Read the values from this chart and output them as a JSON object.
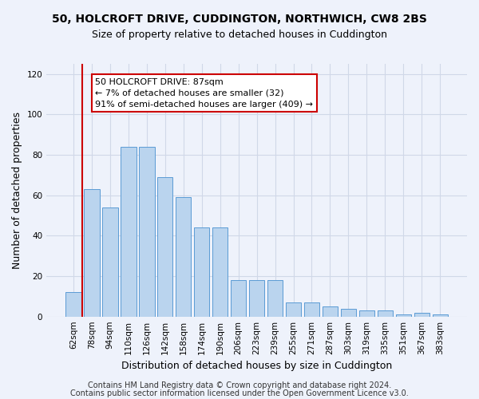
{
  "title": "50, HOLCROFT DRIVE, CUDDINGTON, NORTHWICH, CW8 2BS",
  "subtitle": "Size of property relative to detached houses in Cuddington",
  "xlabel": "Distribution of detached houses by size in Cuddington",
  "ylabel": "Number of detached properties",
  "categories": [
    "62sqm",
    "78sqm",
    "94sqm",
    "110sqm",
    "126sqm",
    "142sqm",
    "158sqm",
    "174sqm",
    "190sqm",
    "206sqm",
    "223sqm",
    "239sqm",
    "255sqm",
    "271sqm",
    "287sqm",
    "303sqm",
    "319sqm",
    "335sqm",
    "351sqm",
    "367sqm",
    "383sqm"
  ],
  "values": [
    12,
    63,
    54,
    84,
    84,
    69,
    59,
    44,
    44,
    18,
    18,
    18,
    7,
    7,
    5,
    4,
    3,
    3,
    1,
    2,
    1
  ],
  "bar_color": "#bad4ee",
  "bar_edge_color": "#5b9bd5",
  "grid_color": "#d0d8e8",
  "background_color": "#eef2fb",
  "vline_x": 1.0,
  "vline_color": "#cc0000",
  "annotation_text": "50 HOLCROFT DRIVE: 87sqm\n← 7% of detached houses are smaller (32)\n91% of semi-detached houses are larger (409) →",
  "annotation_box_color": "#ffffff",
  "annotation_box_edge": "#cc0000",
  "ylim": [
    0,
    125
  ],
  "yticks": [
    0,
    20,
    40,
    60,
    80,
    100,
    120
  ],
  "footnote1": "Contains HM Land Registry data © Crown copyright and database right 2024.",
  "footnote2": "Contains public sector information licensed under the Open Government Licence v3.0.",
  "title_fontsize": 10,
  "subtitle_fontsize": 9,
  "xlabel_fontsize": 9,
  "ylabel_fontsize": 9,
  "tick_fontsize": 7.5,
  "annotation_fontsize": 8,
  "footnote_fontsize": 7
}
